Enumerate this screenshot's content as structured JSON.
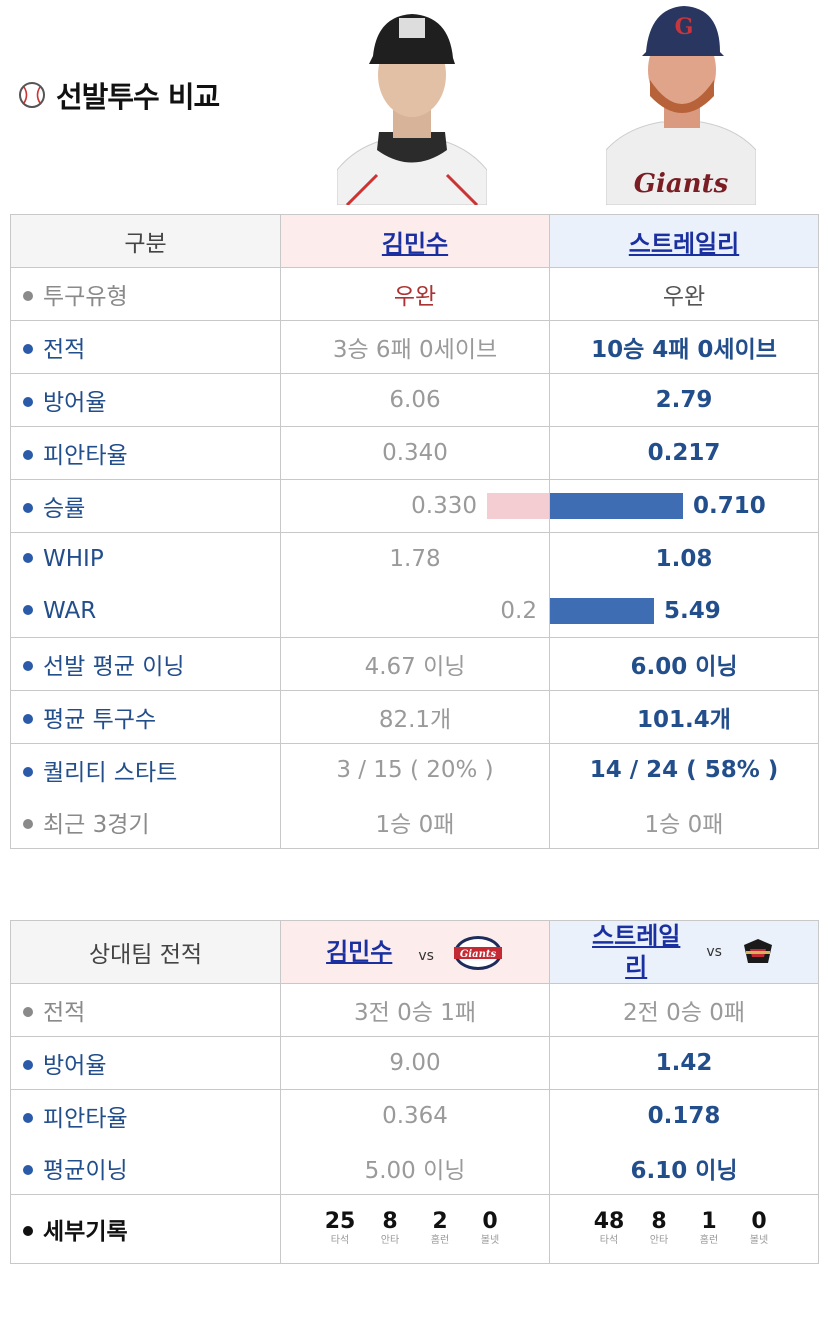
{
  "header": {
    "title": "선발투수 비교"
  },
  "table1": {
    "col_label": "구분",
    "player1": "김민수",
    "player2": "스트레일리",
    "rows": [
      {
        "label": "투구유형",
        "v1": "우완",
        "v2": "우완"
      },
      {
        "label": "전적",
        "v1": "3승 6패 0세이브",
        "v2": "10승 4패 0세이브"
      },
      {
        "label": "방어율",
        "v1": "6.06",
        "v2": "2.79"
      },
      {
        "label": "피안타율",
        "v1": "0.340",
        "v2": "0.217"
      },
      {
        "label": "승률",
        "v1": "0.330",
        "v2": "0.710"
      },
      {
        "label": "WHIP",
        "v1": "1.78",
        "v2": "1.08"
      },
      {
        "label": "WAR",
        "v1": "0.2",
        "v2": "5.49"
      },
      {
        "label": "선발 평균 이닝",
        "v1": "4.67 이닝",
        "v2": "6.00 이닝"
      },
      {
        "label": "평균 투구수",
        "v1": "82.1개",
        "v2": "101.4개"
      },
      {
        "label": "퀄리티 스타트",
        "v1": "3 / 15 ( 20% )",
        "v2": "14 / 24 ( 58% )"
      },
      {
        "label": "최근 3경기",
        "v1": "1승 0패",
        "v2": "1승 0패"
      }
    ],
    "bars": {
      "win_rate_p1": 0.33,
      "win_rate_p2": 0.71,
      "war_p1": 0.2,
      "war_p2": 5.49
    }
  },
  "table2": {
    "col_label": "상대팀 전적",
    "player1": "김민수",
    "player2_line1": "스트레일",
    "player2_line2": "리",
    "vs": "vs",
    "team1_logo": "giants-logo",
    "team2_logo": "opponent-team-logo",
    "rows": [
      {
        "label": "전적",
        "v1": "3전 0승 1패",
        "v2": "2전 0승 0패"
      },
      {
        "label": "방어율",
        "v1": "9.00",
        "v2": "1.42"
      },
      {
        "label": "피안타율",
        "v1": "0.364",
        "v2": "0.178"
      },
      {
        "label": "평균이닝",
        "v1": "5.00 이닝",
        "v2": "6.10 이닝"
      }
    ],
    "detail": {
      "label": "세부기록",
      "stat_labels": [
        "타석",
        "안타",
        "홈런",
        "볼넷"
      ],
      "p1": [
        "25",
        "8",
        "2",
        "0"
      ],
      "p2": [
        "48",
        "8",
        "1",
        "0"
      ]
    }
  },
  "colors": {
    "accent_blue": "#234e8c",
    "bar_blue": "#3f6db3",
    "bar_pink": "#f3cdd1",
    "red_text": "#a33333"
  }
}
